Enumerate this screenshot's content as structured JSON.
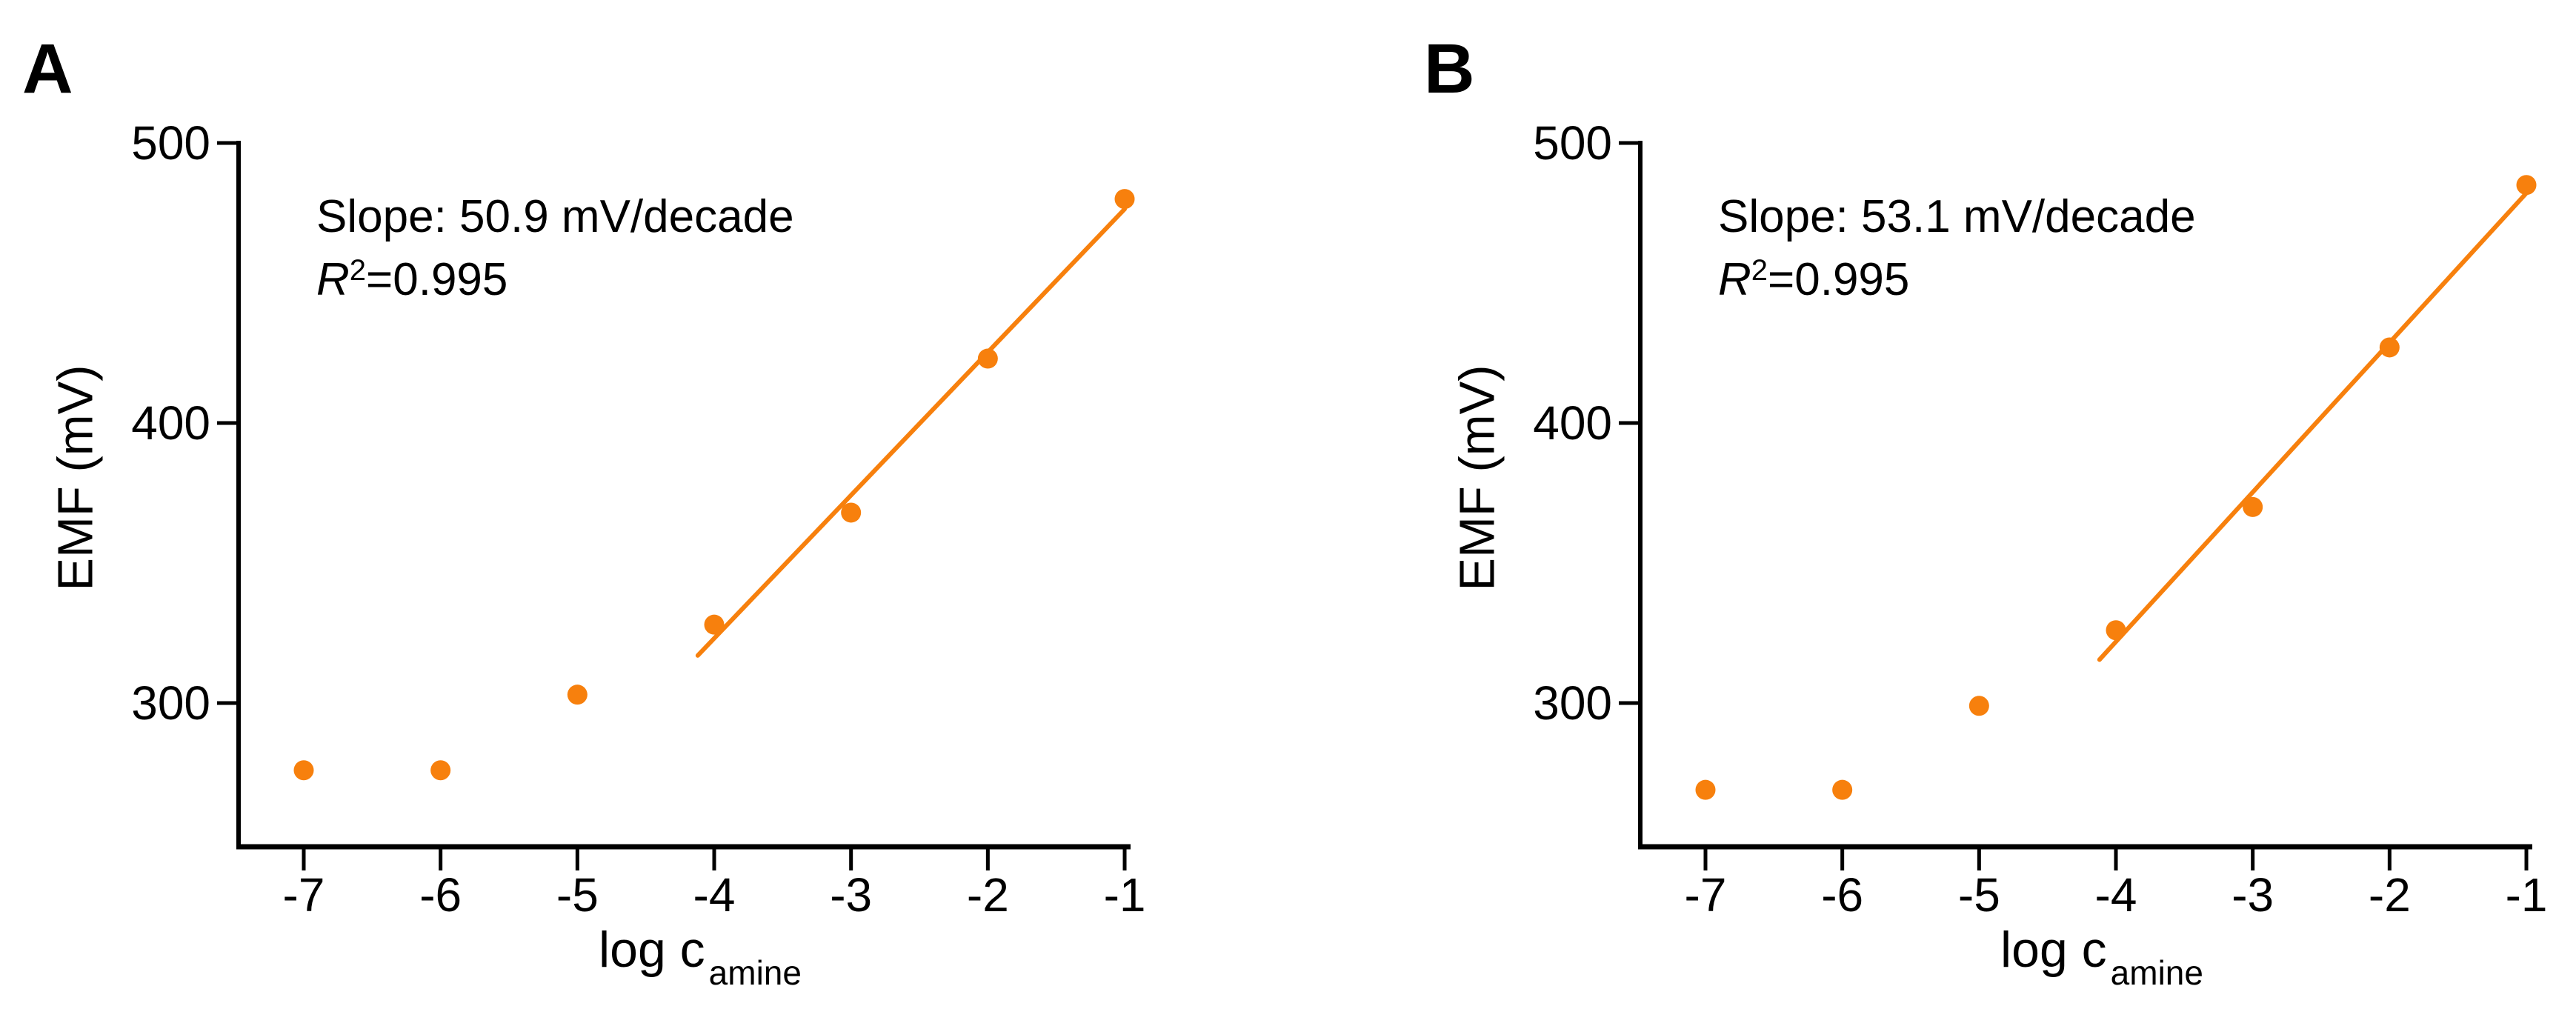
{
  "figure": {
    "background": "#ffffff",
    "axis_color": "#000000",
    "text_color": "#000000",
    "point_color": "#f7800d",
    "line_color": "#f7800d"
  },
  "chart_data": [
    {
      "type": "scatter",
      "panel_label": "A",
      "ylabel": "EMF (mV)",
      "xlabel": "log c",
      "xlabel_sub": "amine",
      "annotation": {
        "slope": "Slope: 50.9 mV/decade",
        "r": "R",
        "r_sup": "2",
        "r_rest": "=0.995"
      },
      "x": [
        -7,
        -6,
        -5,
        -4,
        -3,
        -2,
        -1
      ],
      "y": [
        276,
        276,
        303,
        328,
        368,
        423,
        480
      ],
      "fit": {
        "x_min": -4,
        "draw_from": -4.12,
        "draw_to": -1.0
      },
      "xticks": [
        -7,
        -6,
        -5,
        -4,
        -3,
        -2,
        -1
      ],
      "yticks": [
        500,
        400,
        300
      ],
      "ylim": [
        247,
        500
      ],
      "legend": "none",
      "grid": "off"
    },
    {
      "type": "scatter",
      "panel_label": "B",
      "ylabel": "EMF (mV)",
      "xlabel": "log c",
      "xlabel_sub": "amine",
      "annotation": {
        "slope": "Slope: 53.1 mV/decade",
        "r": "R",
        "r_sup": "2",
        "r_rest": "=0.995"
      },
      "x": [
        -7,
        -6,
        -5,
        -4,
        -3,
        -2,
        -1
      ],
      "y": [
        269,
        269,
        299,
        326,
        370,
        427,
        485
      ],
      "fit": {
        "x_min": -4,
        "draw_from": -4.12,
        "draw_to": -1.0
      },
      "xticks": [
        -7,
        -6,
        -5,
        -4,
        -3,
        -2,
        -1
      ],
      "yticks": [
        500,
        400,
        300
      ],
      "ylim": [
        247,
        500
      ],
      "legend": "none",
      "grid": "off"
    }
  ]
}
